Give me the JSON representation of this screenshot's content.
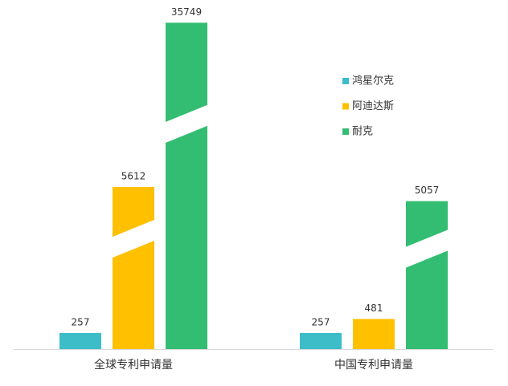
{
  "chart_data": {
    "type": "bar",
    "categories": [
      "全球专利申请量",
      "中国专利申请量"
    ],
    "series": [
      {
        "name": "鸿星尔克",
        "color": "#3dbdc8",
        "values": [
          257,
          257
        ]
      },
      {
        "name": "阿迪达斯",
        "color": "#ffc000",
        "values": [
          5612,
          481
        ]
      },
      {
        "name": "耐克",
        "color": "#33bd72",
        "values": [
          35749,
          5057
        ]
      }
    ],
    "data_labels": true,
    "axis_break": true,
    "legend": "upper right"
  }
}
